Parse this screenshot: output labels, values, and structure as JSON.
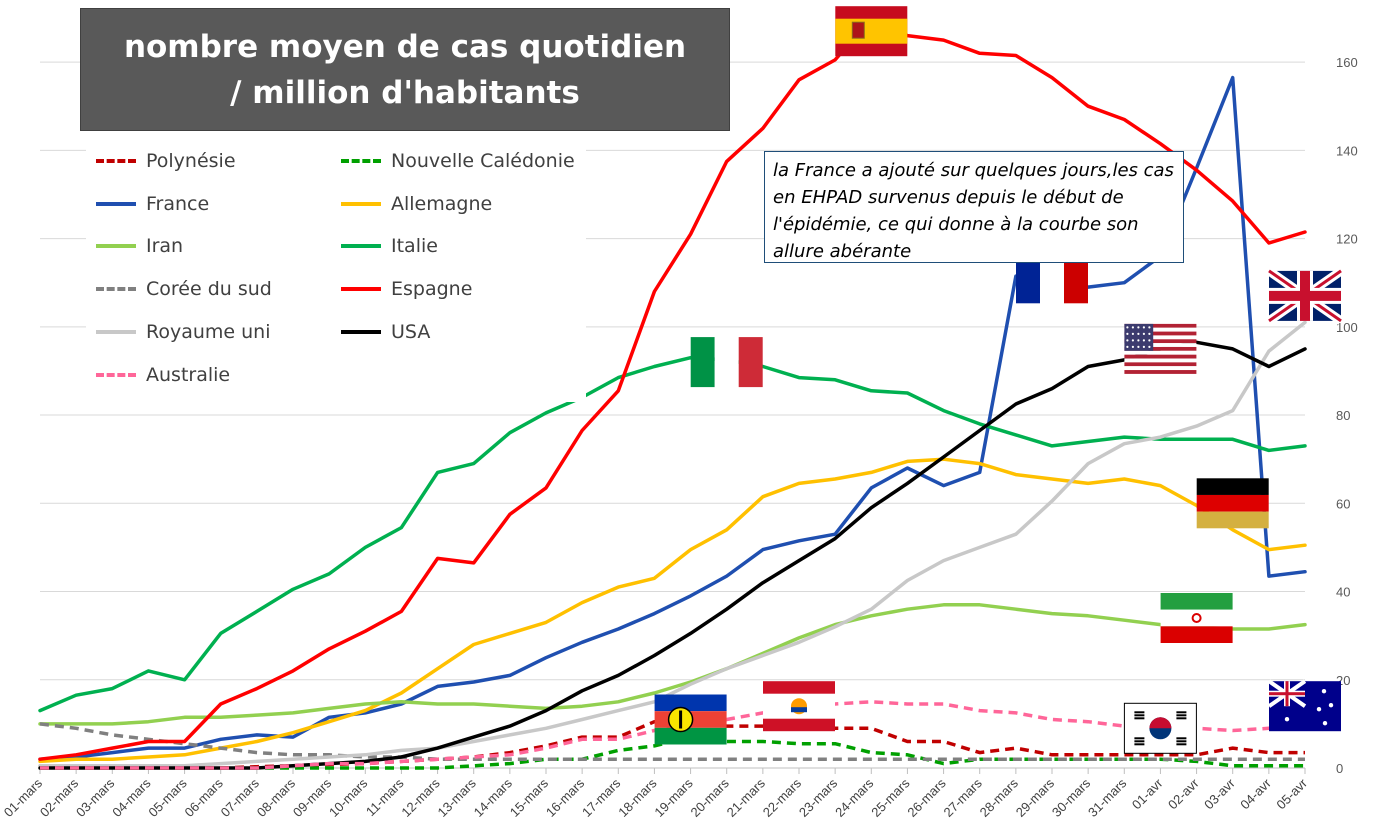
{
  "title_lines": [
    "nombre moyen de cas quotidien",
    "/ million d'habitants"
  ],
  "annotation": "la France a ajouté sur quelques jours,les cas en EHPAD survenus depuis le début de l'épidémie, ce qui donne à la courbe son allure abérante",
  "colors": {
    "polynesie": "#c00000",
    "nouvelle_caledonie": "#00a000",
    "france": "#1f4fb0",
    "allemagne": "#ffc000",
    "iran": "#92d050",
    "italie": "#00b050",
    "coree_du_sud": "#808080",
    "espagne": "#ff0000",
    "royaume_uni": "#c8c8c8",
    "usa": "#000000",
    "australie": "#ff6699"
  },
  "chart_data": {
    "type": "line",
    "title": "nombre moyen de cas quotidien / million d'habitants",
    "xlabel": "",
    "ylabel": "",
    "ylim": [
      0,
      170
    ],
    "yticks": [
      0,
      20,
      40,
      60,
      80,
      100,
      120,
      140,
      160
    ],
    "y_axis_side": "right",
    "grid": true,
    "legend_position": "top-left",
    "categories": [
      "01-mars",
      "02-mars",
      "03-mars",
      "04-mars",
      "05-mars",
      "06-mars",
      "07-mars",
      "08-mars",
      "09-mars",
      "10-mars",
      "11-mars",
      "12-mars",
      "13-mars",
      "14-mars",
      "15-mars",
      "16-mars",
      "17-mars",
      "18-mars",
      "19-mars",
      "20-mars",
      "21-mars",
      "22-mars",
      "23-mars",
      "24-mars",
      "25-mars",
      "26-mars",
      "27-mars",
      "28-mars",
      "29-mars",
      "30-mars",
      "31-mars",
      "01-avr",
      "02-avr",
      "03-avr",
      "04-avr",
      "05-avr"
    ],
    "series": [
      {
        "name": "Polynésie",
        "key": "polynesie",
        "dashed": true,
        "values": [
          0,
          0,
          0,
          0,
          0,
          0,
          0.3,
          0.5,
          0.8,
          1,
          1.5,
          2,
          2.5,
          3.5,
          5,
          7,
          7,
          10.5,
          10.5,
          9.5,
          9.5,
          9.5,
          9,
          9,
          6,
          6,
          3.5,
          4.5,
          3,
          3,
          3,
          3,
          3,
          4.5,
          3.5,
          3.5
        ]
      },
      {
        "name": "Nouvelle Calédonie",
        "key": "nouvelle_caledonie",
        "dashed": true,
        "values": [
          0,
          0,
          0,
          0,
          0,
          0,
          0,
          0,
          0,
          0,
          0,
          0,
          0.5,
          1,
          2,
          2,
          4,
          5,
          7,
          6,
          6,
          5.5,
          5.5,
          3.5,
          3,
          1,
          2,
          2,
          2,
          2,
          2,
          2,
          1.5,
          0.5,
          0.5,
          0.5
        ]
      },
      {
        "name": "France",
        "key": "france",
        "dashed": false,
        "values": [
          2,
          2.5,
          3.5,
          4.5,
          4.5,
          6.5,
          7.5,
          7,
          11.5,
          12.5,
          14.5,
          18.5,
          19.5,
          21,
          25,
          28.5,
          31.5,
          35,
          39,
          43.5,
          49.5,
          51.5,
          53,
          63.5,
          68,
          64,
          67,
          111.5,
          112.5,
          109,
          110,
          116,
          136,
          156.5,
          43.5,
          44.5
        ]
      },
      {
        "name": "Allemagne",
        "key": "allemagne",
        "dashed": false,
        "values": [
          1.5,
          2,
          2,
          2.5,
          3,
          4.5,
          6,
          8,
          10.5,
          13,
          17,
          22.5,
          28,
          30.5,
          33,
          37.5,
          41,
          43,
          49.5,
          54,
          61.5,
          64.5,
          65.5,
          67,
          69.5,
          70,
          69,
          66.5,
          65.5,
          64.5,
          65.5,
          64,
          59.5,
          54,
          49.5,
          50.5
        ]
      },
      {
        "name": "Iran",
        "key": "iran",
        "dashed": false,
        "values": [
          10,
          10,
          10,
          10.5,
          11.5,
          11.5,
          12,
          12.5,
          13.5,
          14.5,
          15,
          14.5,
          14.5,
          14,
          13.5,
          14,
          15,
          17,
          19.5,
          22.5,
          26,
          29.5,
          32.5,
          34.5,
          36,
          37,
          37,
          36,
          35,
          34.5,
          33.5,
          32.5,
          32,
          31.5,
          31.5,
          32.5
        ]
      },
      {
        "name": "Italie",
        "key": "italie",
        "dashed": false,
        "values": [
          13,
          16.5,
          18,
          22,
          20,
          30.5,
          35.5,
          40.5,
          44,
          50,
          54.5,
          67,
          69,
          76,
          80.5,
          84,
          88.5,
          91,
          93,
          92.5,
          91,
          88.5,
          88,
          85.5,
          85,
          81,
          78,
          75.5,
          73,
          74,
          75,
          74.5,
          74.5,
          74.5,
          72,
          73
        ]
      },
      {
        "name": "Corée du sud",
        "key": "coree_du_sud",
        "dashed": true,
        "values": [
          10,
          9,
          7.5,
          6.5,
          5.5,
          4.5,
          3.5,
          3,
          3,
          2.5,
          2.5,
          2,
          2,
          2,
          2,
          2,
          2,
          2,
          2,
          2,
          2,
          2,
          2,
          2,
          2,
          2,
          2,
          2,
          2,
          2,
          2,
          2,
          2,
          2,
          2,
          2
        ]
      },
      {
        "name": "Espagne",
        "key": "espagne",
        "dashed": false,
        "values": [
          2,
          3,
          4.5,
          6,
          6,
          14.5,
          18,
          22,
          27,
          31,
          35.5,
          47.5,
          46.5,
          57.5,
          63.5,
          76.5,
          85.5,
          108,
          121,
          137.5,
          145,
          156,
          160.5,
          170,
          166,
          165,
          162,
          161.5,
          156.5,
          150,
          147,
          141.5,
          135.5,
          128.5,
          119,
          121.5
        ]
      },
      {
        "name": "Royaume uni",
        "key": "royaume_uni",
        "dashed": false,
        "values": [
          0.5,
          0.5,
          0.5,
          0.5,
          0.5,
          1,
          1.5,
          2,
          2.5,
          3,
          4,
          4.5,
          6,
          7.5,
          9,
          11,
          13,
          15,
          19,
          22.5,
          25.5,
          28.5,
          32,
          36,
          42.5,
          47,
          50,
          53,
          60.5,
          69,
          73.5,
          75,
          77.5,
          81,
          94.5,
          101
        ]
      },
      {
        "name": "USA",
        "key": "usa",
        "dashed": false,
        "values": [
          0,
          0,
          0,
          0,
          0,
          0,
          0,
          0.5,
          1,
          1.5,
          2.5,
          4.5,
          7,
          9.5,
          13,
          17.5,
          21,
          25.5,
          30.5,
          36,
          42,
          47,
          52,
          59,
          64.5,
          70.5,
          76.5,
          82.5,
          86,
          91,
          92.5,
          95,
          96.5,
          95,
          91,
          95
        ]
      },
      {
        "name": "Australie",
        "key": "australie",
        "dashed": true,
        "values": [
          0,
          0,
          0,
          0,
          0,
          0,
          0,
          0.5,
          1,
          1,
          1.5,
          2,
          2.5,
          3,
          4.5,
          6.5,
          6.5,
          8.5,
          9.5,
          11,
          12.5,
          14.5,
          14.5,
          15,
          14.5,
          14.5,
          13,
          12.5,
          11,
          10.5,
          9.5,
          9,
          9,
          8.5,
          9,
          9
        ]
      }
    ]
  },
  "flags": [
    {
      "name": "spain-flag",
      "x": "24-mars",
      "y": 167
    },
    {
      "name": "france-flag",
      "x": "29-mars",
      "y": 111
    },
    {
      "name": "uk-flag",
      "x": "05-avr",
      "y": 107
    },
    {
      "name": "usa-flag",
      "x": "01-avr",
      "y": 95
    },
    {
      "name": "italy-flag",
      "x": "20-mars",
      "y": 92
    },
    {
      "name": "germany-flag",
      "x": "03-avr",
      "y": 60
    },
    {
      "name": "iran-flag",
      "x": "02-avr",
      "y": 34
    },
    {
      "name": "new-caledonia-flag",
      "x": "19-mars",
      "y": 11
    },
    {
      "name": "french-polynesia-flag",
      "x": "22-mars",
      "y": 14
    },
    {
      "name": "south-korea-flag",
      "x": "01-avr",
      "y": 9
    },
    {
      "name": "australia-flag",
      "x": "05-avr",
      "y": 14
    }
  ]
}
